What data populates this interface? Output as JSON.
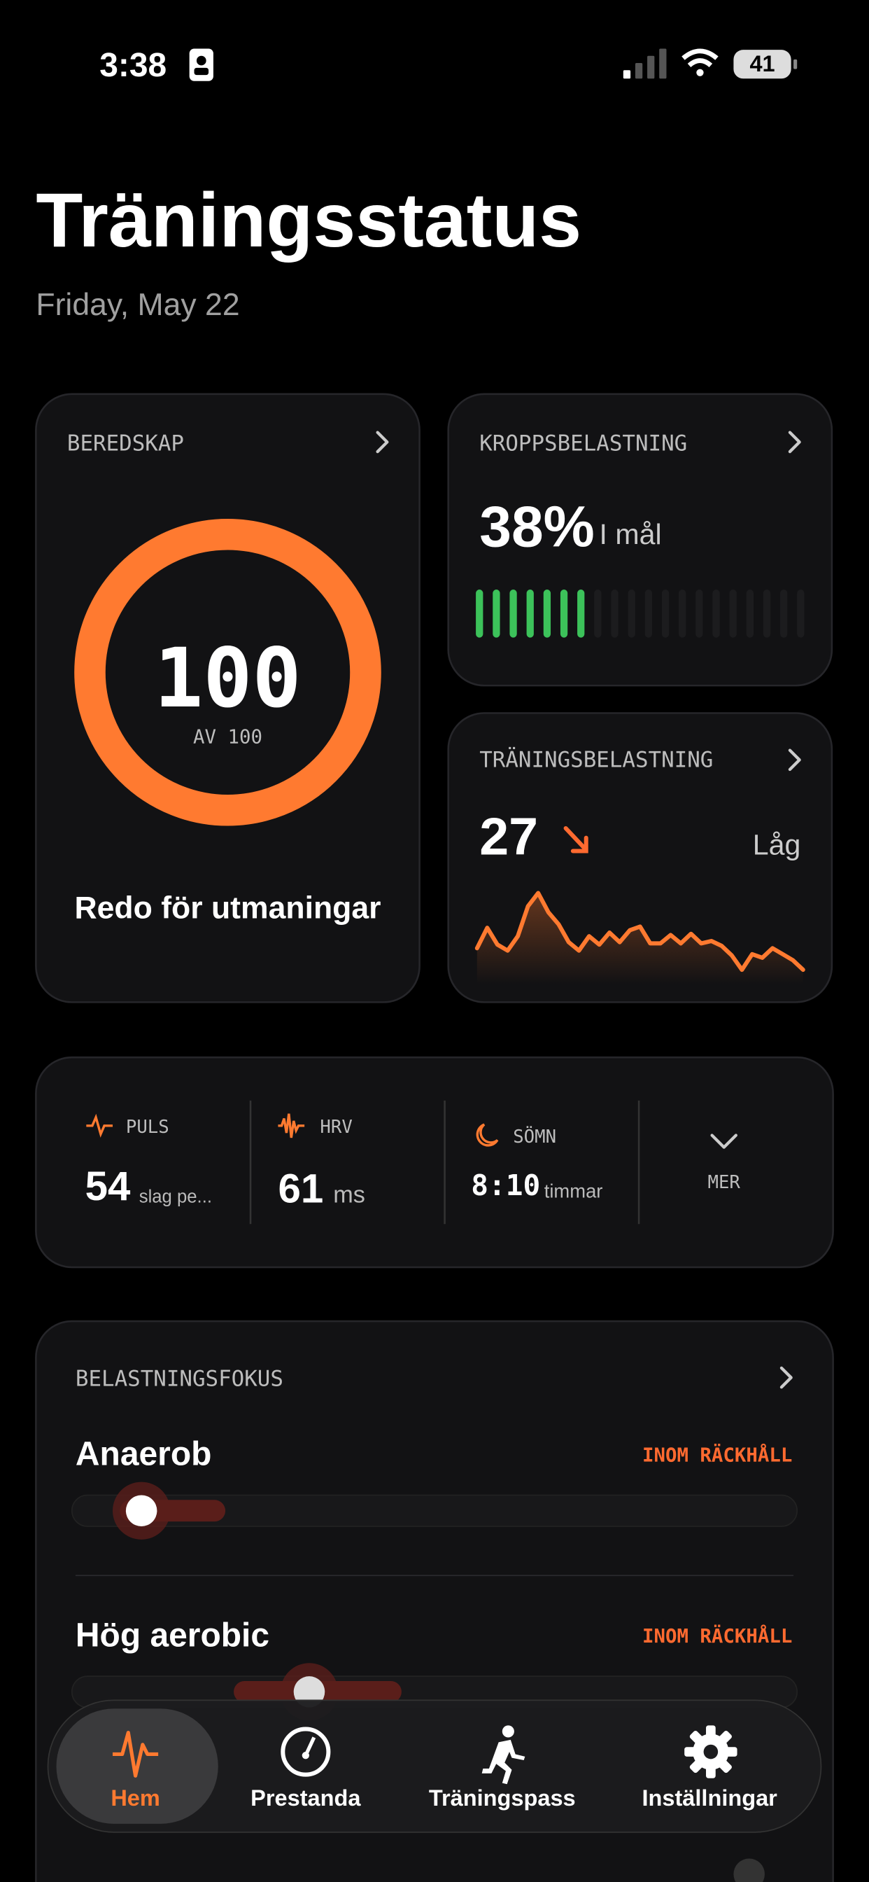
{
  "status_bar": {
    "time": "3:38",
    "battery": "41"
  },
  "header": {
    "title": "Träningsstatus",
    "date": "Friday, May 22"
  },
  "readiness": {
    "label": "BEREDSKAP",
    "score": 100,
    "max_label": "AV 100",
    "status": "Redo för utmaningar"
  },
  "body_load": {
    "label": "KROPPSBELASTNING",
    "value": "38%",
    "status": "I mål",
    "segments": 20,
    "filled": 7
  },
  "training_load": {
    "label": "TRÄNINGSBELASTNING",
    "value": "27",
    "status": "Låg",
    "trend": [
      20,
      37,
      23,
      18,
      30,
      55,
      66,
      50,
      40,
      25,
      18,
      30,
      23,
      33,
      25,
      35,
      38,
      24,
      24,
      31,
      24,
      32,
      24,
      26,
      22,
      14,
      2,
      15,
      12,
      20,
      15,
      10,
      2
    ]
  },
  "metrics": {
    "items": [
      {
        "label": "PULS",
        "value": "54",
        "unit": "slag pe..."
      },
      {
        "label": "HRV",
        "value": "61",
        "unit": "ms"
      },
      {
        "label": "SÖMN",
        "value": "8:10",
        "unit": "timmar"
      }
    ],
    "more": "MER"
  },
  "focus": {
    "title": "BELASTNINGSFOKUS",
    "items": [
      {
        "name": "Anaerob",
        "status": "INOM RÄCKHÅLL"
      },
      {
        "name": "Hög aerobic",
        "status": "INOM RÄCKHÅLL"
      }
    ]
  },
  "tabs": [
    "Hem",
    "Prestanda",
    "Träningspass",
    "Inställningar"
  ]
}
